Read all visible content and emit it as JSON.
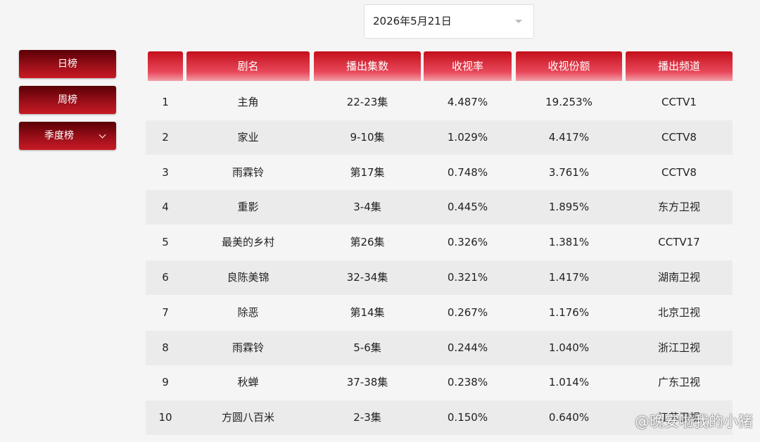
{
  "date_picker": "2026年5月21日",
  "sidebar": [
    "日榜",
    "周榜",
    "季度榜"
  ],
  "table": {
    "headers": [
      "剧名",
      "播出集数",
      "收视率",
      "收视份额",
      "播出频道"
    ],
    "rows": [
      [
        1,
        "主角",
        "22-23集",
        "4.487%",
        "19.253%",
        "CCTV1"
      ],
      [
        2,
        "家业",
        "9-10集",
        "1.029%",
        "4.417%",
        "CCTV8"
      ],
      [
        3,
        "雨霖铃",
        "第17集",
        "0.748%",
        "3.761%",
        "CCTV8"
      ],
      [
        4,
        "重影",
        "3-4集",
        "0.445%",
        "1.895%",
        "东方卫视"
      ],
      [
        5,
        "最美的乡村",
        "第26集",
        "0.326%",
        "1.381%",
        "CCTV17"
      ],
      [
        6,
        "良陈美锦",
        "32-34集",
        "0.321%",
        "1.417%",
        "湖南卫视"
      ],
      [
        7,
        "除恶",
        "第14集",
        "0.267%",
        "1.176%",
        "北京卫视"
      ],
      [
        8,
        "雨霖铃",
        "5-6集",
        "0.244%",
        "1.040%",
        "浙江卫视"
      ],
      [
        9,
        "秋蝉",
        "37-38集",
        "0.238%",
        "1.014%",
        "广东卫视"
      ],
      [
        10,
        "方圆八百米",
        "2-3集",
        "0.150%",
        "0.640%",
        "江苏卫视"
      ]
    ]
  },
  "watermark": "@晚安啦我的小猪"
}
